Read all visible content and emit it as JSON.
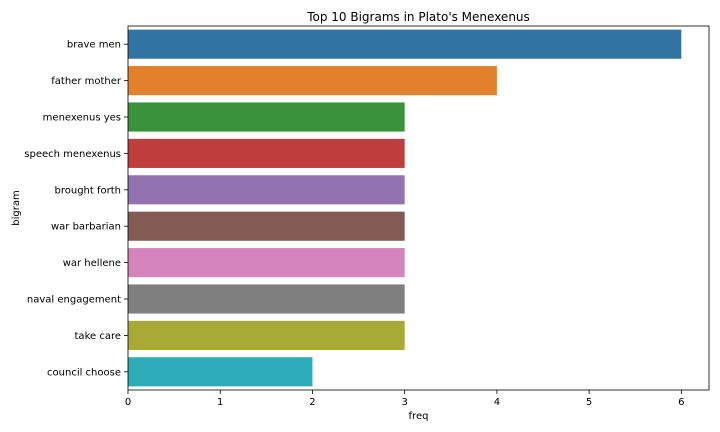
{
  "chart_data": {
    "type": "bar",
    "orientation": "horizontal",
    "title": "Top 10 Bigrams in Plato's Menexenus",
    "xlabel": "freq",
    "ylabel": "bigram",
    "categories": [
      "brave men",
      "father mother",
      "menexenus yes",
      "speech menexenus",
      "brought forth",
      "war barbarian",
      "war hellene",
      "naval engagement",
      "take care",
      "council choose"
    ],
    "values": [
      6,
      4,
      3,
      3,
      3,
      3,
      3,
      3,
      3,
      2
    ],
    "colors": [
      "#3274a1",
      "#e1812c",
      "#3a923a",
      "#c03d3e",
      "#9372b2",
      "#845b53",
      "#d684bd",
      "#7f7f7f",
      "#a9aa35",
      "#2eabb8"
    ],
    "xlim": [
      0,
      6.3
    ],
    "xticks": [
      0,
      1,
      2,
      3,
      4,
      5,
      6
    ],
    "grid": false,
    "legend": "none"
  }
}
